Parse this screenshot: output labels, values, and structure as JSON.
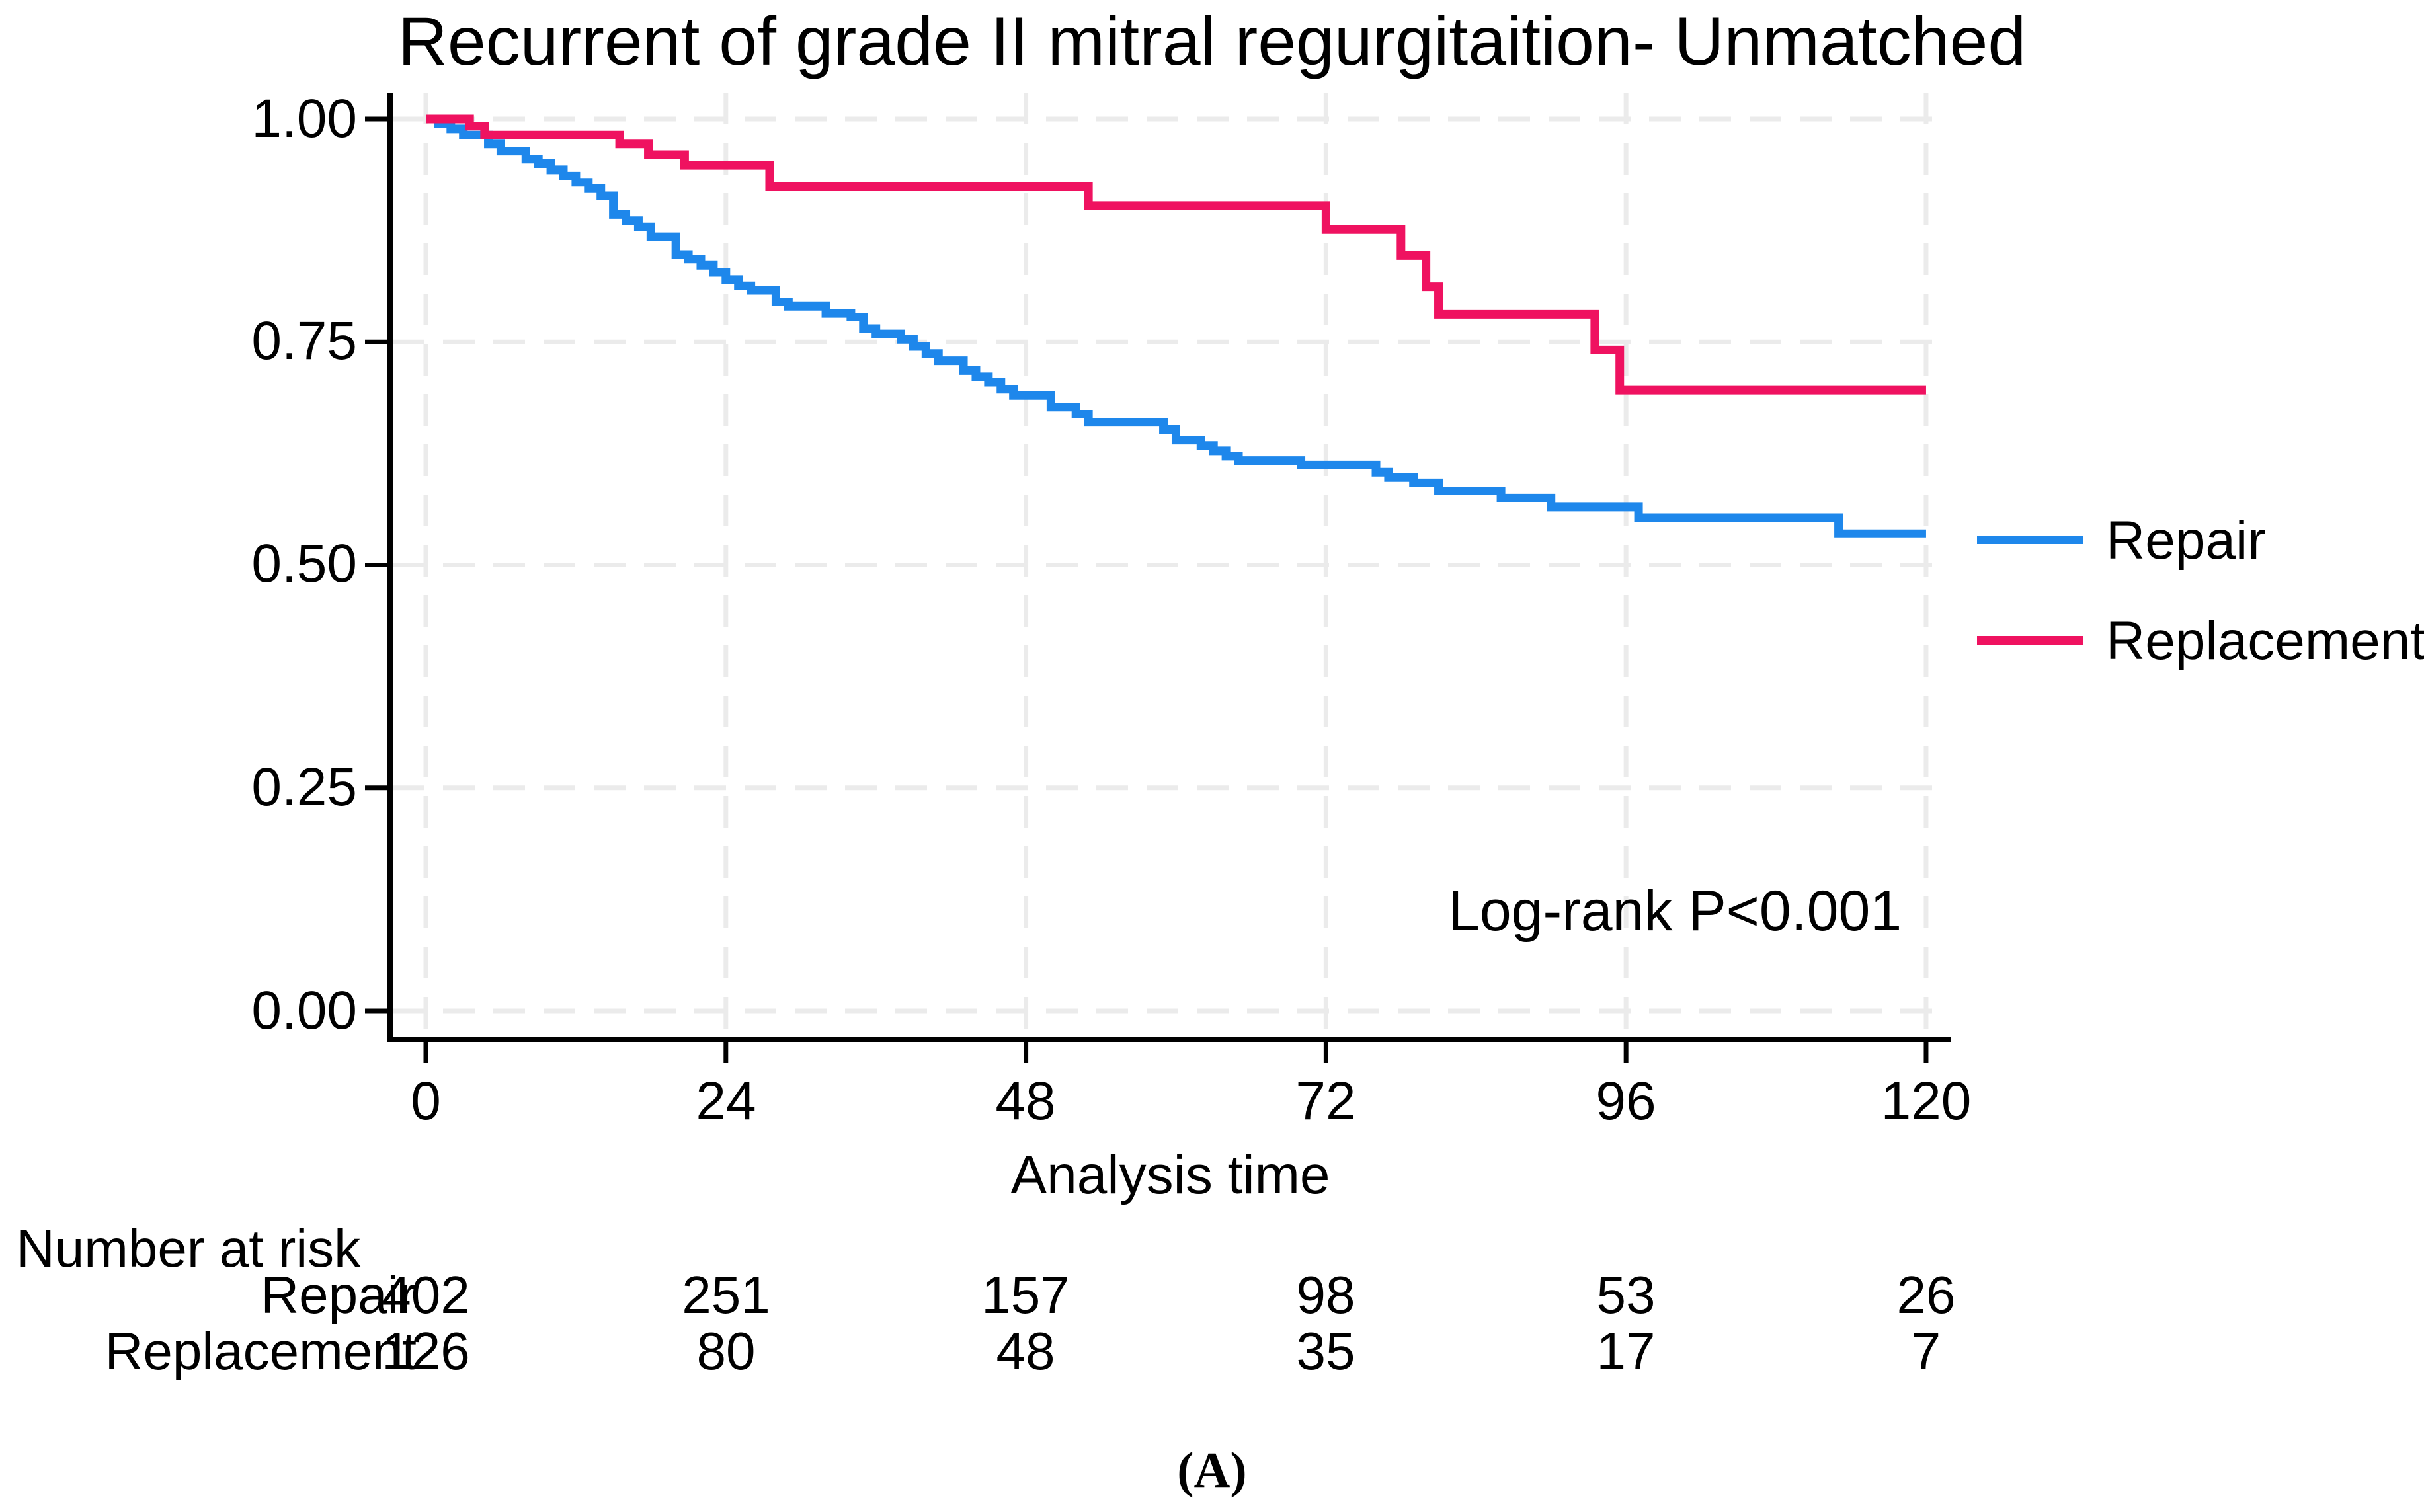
{
  "figure": {
    "title": "Recurrent of grade II mitral regurgitaition- Unmatched",
    "caption": "(A)",
    "annotation": "Log-rank P<0.001"
  },
  "legend": {
    "items": [
      {
        "label": "Repair",
        "color": "#1e87eb"
      },
      {
        "label": "Replacement",
        "color": "#ef1260"
      }
    ]
  },
  "risk_table": {
    "heading": "Number at risk",
    "time_points": [
      "0",
      "24",
      "48",
      "72",
      "96",
      "120"
    ],
    "rows": [
      {
        "label": "Repair",
        "values": [
          "402",
          "251",
          "157",
          "98",
          "53",
          "26"
        ]
      },
      {
        "label": "Replacement",
        "values": [
          "126",
          "80",
          "48",
          "35",
          "17",
          "7"
        ]
      }
    ]
  },
  "chart_data": {
    "type": "line",
    "subtype": "kaplan-meier-step",
    "title": "Recurrent of grade II mitral regurgitaition- Unmatched",
    "xlabel": "Analysis time",
    "ylabel": "",
    "xlim": [
      0,
      120
    ],
    "ylim": [
      0,
      1
    ],
    "x_ticks": [
      "0",
      "24",
      "48",
      "72",
      "96",
      "120"
    ],
    "y_ticks": [
      "1.00",
      "0.75",
      "0.50",
      "0.25",
      "0.00"
    ],
    "x_tick_values": [
      0,
      24,
      48,
      72,
      96,
      120
    ],
    "y_tick_values": [
      1.0,
      0.75,
      0.5,
      0.25,
      0.0
    ],
    "grid": "dashed",
    "grid_color": "#ebebeb",
    "legend_position": "right",
    "annotation": {
      "text": "Log-rank P<0.001",
      "x": 78,
      "y": 0.14
    },
    "series": [
      {
        "name": "Repair",
        "color": "#1e87eb",
        "steps": [
          [
            0,
            1.0
          ],
          [
            1,
            0.995
          ],
          [
            2,
            0.989
          ],
          [
            3,
            0.982
          ],
          [
            5,
            0.972
          ],
          [
            6,
            0.964
          ],
          [
            8,
            0.955
          ],
          [
            9,
            0.95
          ],
          [
            10,
            0.943
          ],
          [
            11,
            0.936
          ],
          [
            12,
            0.929
          ],
          [
            13,
            0.922
          ],
          [
            14,
            0.914
          ],
          [
            15,
            0.893
          ],
          [
            16,
            0.886
          ],
          [
            17,
            0.879
          ],
          [
            18,
            0.868
          ],
          [
            20,
            0.848
          ],
          [
            21,
            0.843
          ],
          [
            22,
            0.836
          ],
          [
            23,
            0.828
          ],
          [
            24,
            0.82
          ],
          [
            25,
            0.813
          ],
          [
            26,
            0.808
          ],
          [
            28,
            0.795
          ],
          [
            29,
            0.79
          ],
          [
            32,
            0.782
          ],
          [
            34,
            0.778
          ],
          [
            35,
            0.765
          ],
          [
            36,
            0.759
          ],
          [
            38,
            0.753
          ],
          [
            39,
            0.745
          ],
          [
            40,
            0.737
          ],
          [
            41,
            0.729
          ],
          [
            43,
            0.718
          ],
          [
            44,
            0.711
          ],
          [
            45,
            0.705
          ],
          [
            46,
            0.697
          ],
          [
            47,
            0.69
          ],
          [
            50,
            0.677
          ],
          [
            52,
            0.669
          ],
          [
            53,
            0.66
          ],
          [
            59,
            0.652
          ],
          [
            60,
            0.64
          ],
          [
            62,
            0.634
          ],
          [
            63,
            0.628
          ],
          [
            64,
            0.622
          ],
          [
            65,
            0.617
          ],
          [
            70,
            0.612
          ],
          [
            76,
            0.604
          ],
          [
            77,
            0.598
          ],
          [
            79,
            0.592
          ],
          [
            81,
            0.583
          ],
          [
            86,
            0.575
          ],
          [
            90,
            0.565
          ],
          [
            97,
            0.553
          ],
          [
            113,
            0.535
          ],
          [
            120,
            0.535
          ]
        ]
      },
      {
        "name": "Replacement",
        "color": "#ef1260",
        "steps": [
          [
            0,
            1.0
          ],
          [
            3.5,
            0.992
          ],
          [
            4.7,
            0.982
          ],
          [
            15.5,
            0.972
          ],
          [
            17.8,
            0.96
          ],
          [
            20.7,
            0.948
          ],
          [
            27.5,
            0.924
          ],
          [
            53,
            0.903
          ],
          [
            72,
            0.876
          ],
          [
            78,
            0.847
          ],
          [
            80,
            0.812
          ],
          [
            81,
            0.781
          ],
          [
            93.5,
            0.741
          ],
          [
            95.5,
            0.696
          ],
          [
            120,
            0.696
          ]
        ]
      }
    ]
  }
}
